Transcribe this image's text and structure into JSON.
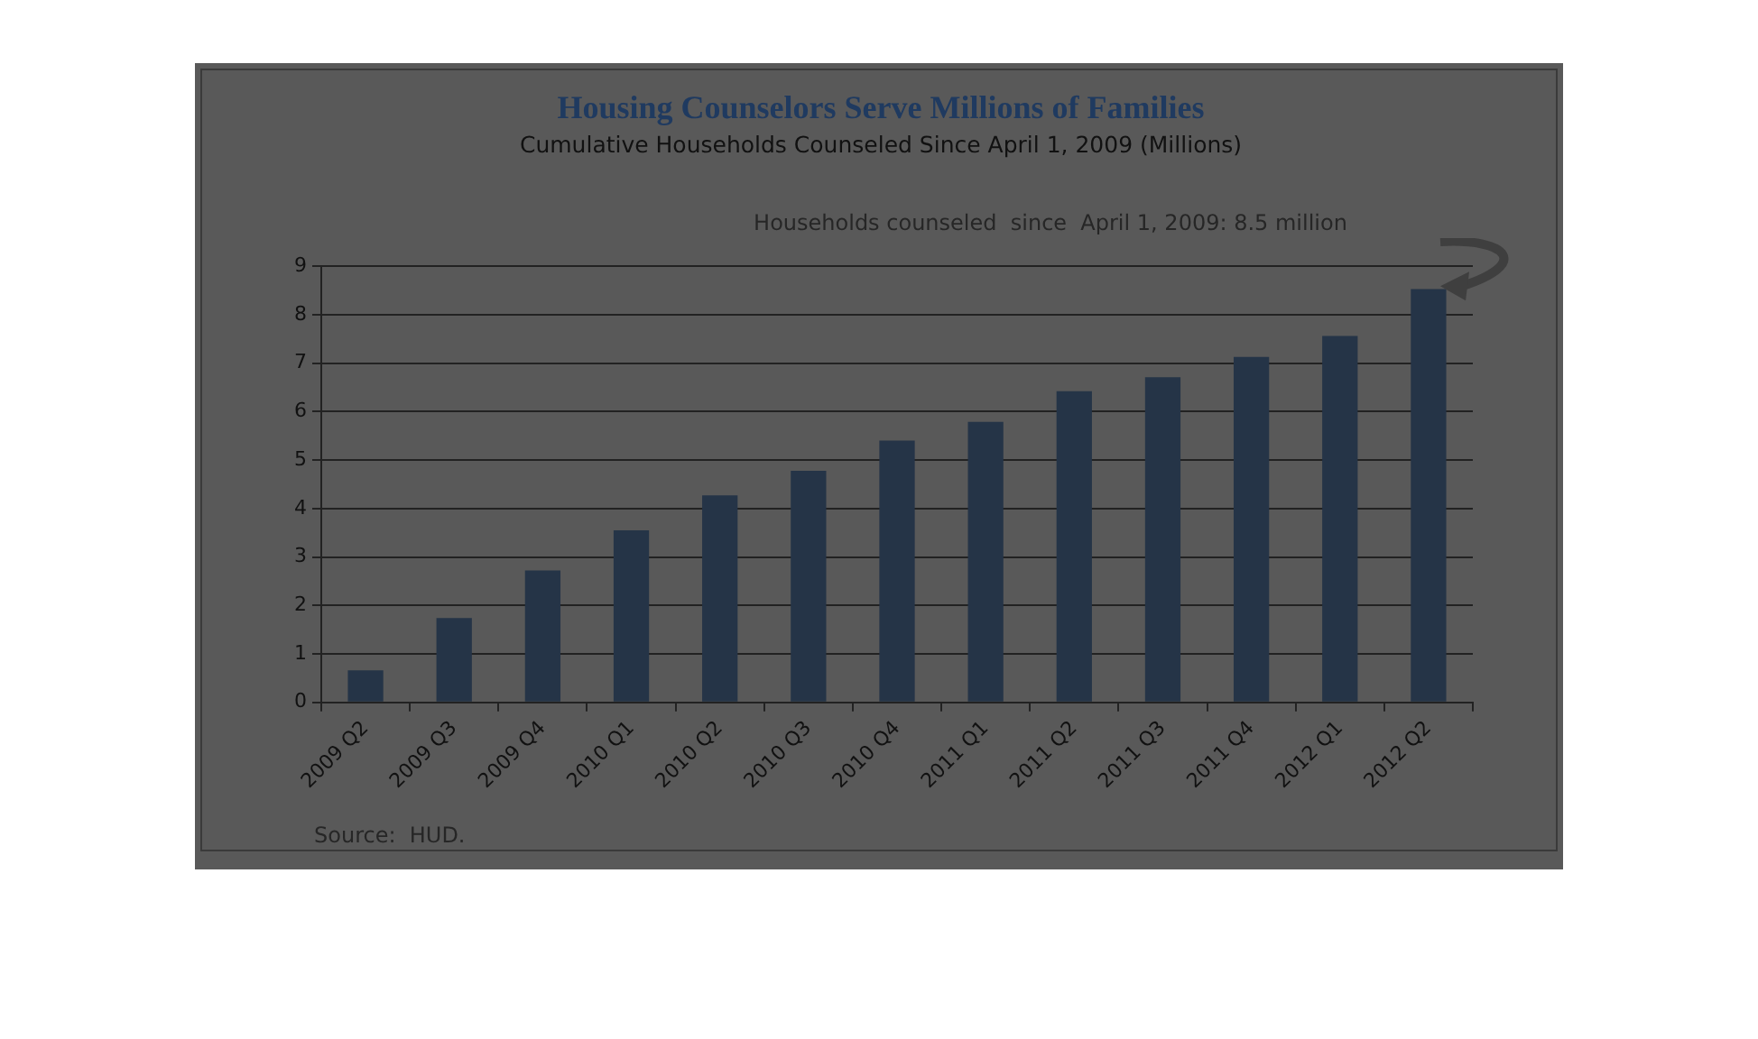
{
  "chart_data": {
    "type": "bar",
    "title": "Housing Counselors Serve Millions of Families",
    "subtitle": "Cumulative Households Counseled Since April 1, 2009 (Millions)",
    "categories": [
      "2009 Q2",
      "2009 Q3",
      "2009 Q4",
      "2010 Q1",
      "2010 Q2",
      "2010 Q3",
      "2010 Q4",
      "2011 Q1",
      "2011 Q2",
      "2011 Q3",
      "2011 Q4",
      "2012 Q1",
      "2012 Q2"
    ],
    "values": [
      0.66,
      1.74,
      2.72,
      3.55,
      4.27,
      4.78,
      5.4,
      5.79,
      6.42,
      6.71,
      7.13,
      7.56,
      8.53
    ],
    "color": "#253447",
    "ylim": [
      0,
      9
    ],
    "yticks": [
      0,
      1,
      2,
      3,
      4,
      5,
      6,
      7,
      8,
      9
    ],
    "grid": "y",
    "legend": false,
    "annotations": [
      "Households counseled  since  April 1, 2009: 8.5 million",
      "Source:  HUD."
    ]
  }
}
